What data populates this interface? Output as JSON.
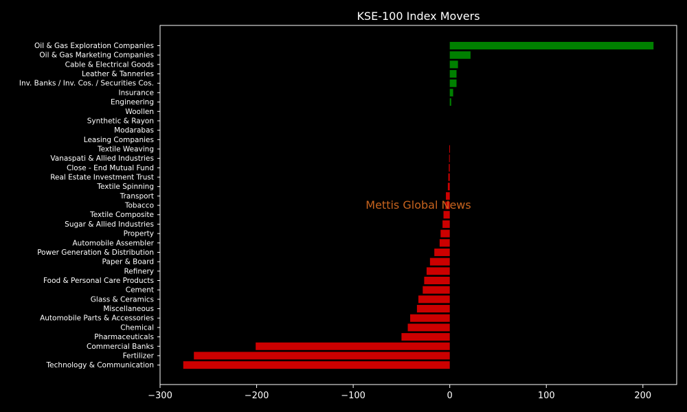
{
  "chart_data": {
    "type": "bar",
    "orientation": "horizontal",
    "title": "KSE-100 Index Movers",
    "watermark": "Mettis Global News",
    "xlabel": "",
    "ylabel": "",
    "xlim": [
      -300,
      235
    ],
    "xticks": [
      -300,
      -200,
      -100,
      0,
      100,
      200
    ],
    "grid": false,
    "colors": {
      "positive": "#008000",
      "negative": "#cc0000",
      "background": "#000000",
      "text": "#ffffff",
      "watermark": "#c8641e"
    },
    "categories": [
      "Oil & Gas Exploration Companies",
      "Oil & Gas Marketing Companies",
      "Cable & Electrical Goods",
      "Leather & Tanneries",
      "Inv. Banks / Inv. Cos. / Securities Cos.",
      "Insurance",
      "Engineering",
      "Woollen",
      "Synthetic & Rayon",
      "Modarabas",
      "Leasing Companies",
      "Textile Weaving",
      "Vanaspati & Allied Industries",
      "Close - End Mutual Fund",
      "Real Estate Investment Trust",
      "Textile Spinning",
      "Transport",
      "Tobacco",
      "Textile Composite",
      "Sugar & Allied Industries",
      "Property",
      "Automobile Assembler",
      "Power Generation & Distribution",
      "Paper & Board",
      "Refinery",
      "Food & Personal Care Products",
      "Cement",
      "Glass & Ceramics",
      "Miscellaneous",
      "Automobile Parts & Accessories",
      "Chemical",
      "Pharmaceuticals",
      "Commercial Banks",
      "Fertilizer",
      "Technology & Communication"
    ],
    "values": [
      211,
      21.5,
      8.5,
      7,
      7,
      3.5,
      1.5,
      0,
      0,
      0,
      0,
      -0.5,
      -0.7,
      -1,
      -1.5,
      -2,
      -4,
      -4.5,
      -6.5,
      -7.5,
      -9.5,
      -10.5,
      -16,
      -20.5,
      -24,
      -26.5,
      -28,
      -32.5,
      -34,
      -41,
      -43.5,
      -50,
      -201,
      -265,
      -276
    ]
  }
}
